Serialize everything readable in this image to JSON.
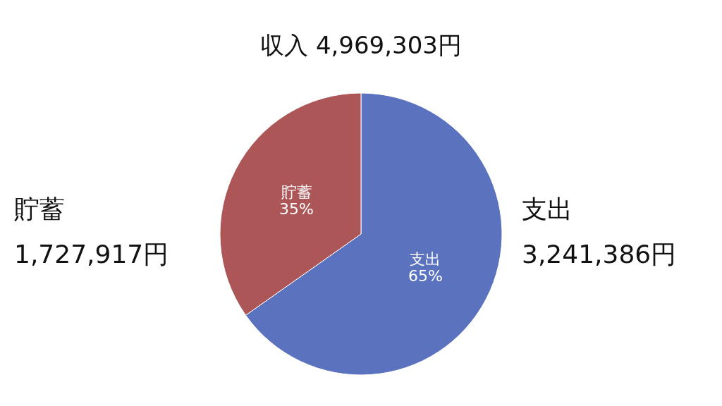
{
  "chart_data": {
    "type": "pie",
    "title": "収入 4,969,303円",
    "categories": [
      "支出",
      "貯蓄"
    ],
    "values": [
      3241386,
      1727917
    ],
    "colors": [
      "#5b72be",
      "#ad5658"
    ],
    "value_labels": [
      "3,241,386円",
      "1,727,917円"
    ],
    "annotations": [
      {
        "text": "65%",
        "x": "支出"
      },
      {
        "text": "35%",
        "x": "貯蓄"
      }
    ]
  }
}
